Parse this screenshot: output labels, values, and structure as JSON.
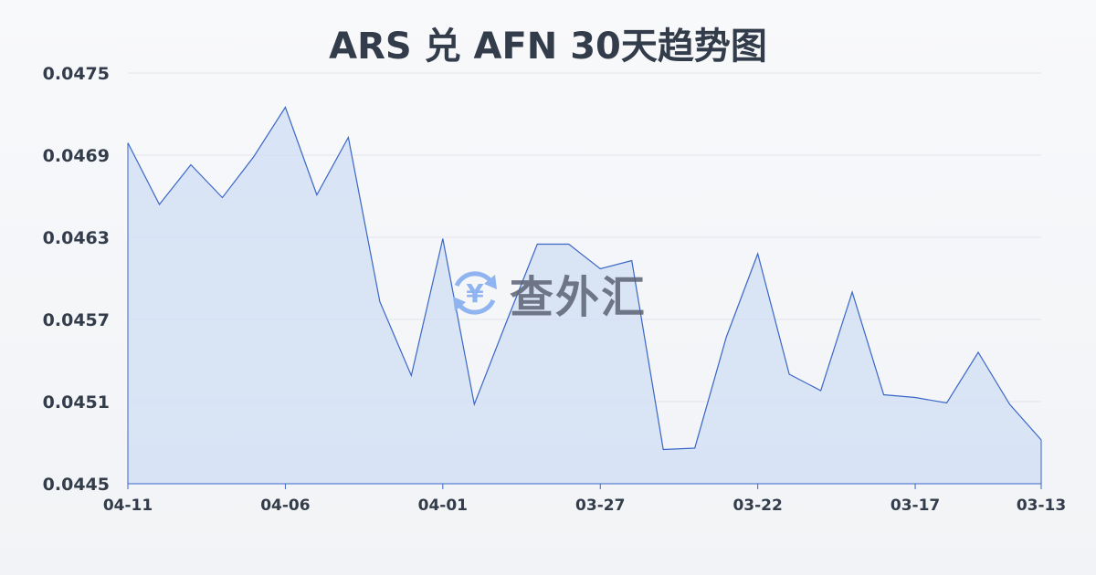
{
  "chart_data": {
    "type": "area",
    "title": "ARS 兑 AFN 30天趋势图",
    "x": [
      "04-11",
      "04-10",
      "04-09",
      "04-08",
      "04-07",
      "04-06",
      "04-05",
      "04-04",
      "04-03",
      "04-02",
      "04-01",
      "03-31",
      "03-30",
      "03-29",
      "03-28",
      "03-27",
      "03-26",
      "03-25",
      "03-24",
      "03-23",
      "03-22",
      "03-21",
      "03-20",
      "03-19",
      "03-18",
      "03-17",
      "03-16",
      "03-15",
      "03-14",
      "03-13"
    ],
    "values": [
      0.04699,
      0.04654,
      0.04683,
      0.04659,
      0.04689,
      0.04725,
      0.04661,
      0.04703,
      0.04583,
      0.04529,
      0.04629,
      0.04508,
      0.04567,
      0.04625,
      0.04625,
      0.04607,
      0.04613,
      0.04475,
      0.04476,
      0.04557,
      0.04618,
      0.0453,
      0.04518,
      0.0459,
      0.04515,
      0.04513,
      0.04509,
      0.04546,
      0.04508,
      0.04482
    ],
    "xticks": [
      "04-11",
      "04-06",
      "04-01",
      "03-27",
      "03-22",
      "03-17",
      "03-13"
    ],
    "yticks": [
      "0.0475",
      "0.0469",
      "0.0463",
      "0.0457",
      "0.0451",
      "0.0445"
    ],
    "ylim": [
      0.0445,
      0.0475
    ],
    "grid": true,
    "line_color": "#3a66c8",
    "fill_color": "#d4e0f5"
  },
  "watermark": {
    "text": "查外汇",
    "symbol": "¥"
  }
}
